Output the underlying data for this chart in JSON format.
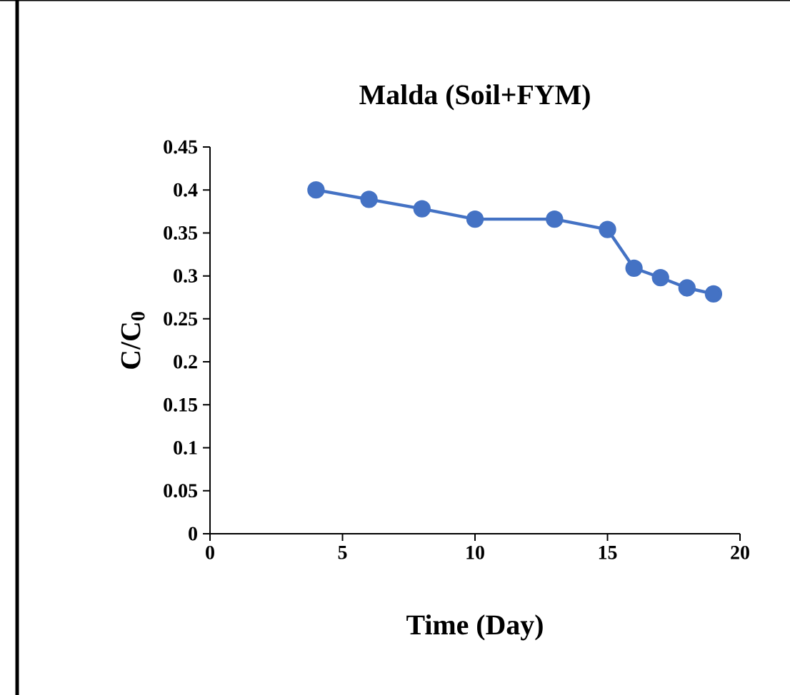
{
  "chart_data": {
    "type": "line",
    "title": "Malda (Soil+FYM)",
    "xlabel": "Time (Day)",
    "ylabel": "C/C$_{0}$",
    "x": [
      4,
      6,
      8,
      10,
      13,
      15,
      16,
      17,
      18,
      19
    ],
    "series": [
      {
        "color": "#4472c4",
        "values": [
          0.4,
          0.389,
          0.378,
          0.366,
          0.366,
          0.354,
          0.309,
          0.298,
          0.286,
          0.279
        ]
      }
    ],
    "xlim": [
      0,
      20
    ],
    "xticks": [
      0,
      5,
      10,
      15,
      20
    ],
    "ylim": [
      0,
      0.45
    ],
    "yticks": [
      0,
      0.05,
      0.1,
      0.15,
      0.2,
      0.25,
      0.3,
      0.35,
      0.4,
      0.45
    ],
    "grid": false,
    "marker": "circle",
    "line_style": "solid"
  }
}
